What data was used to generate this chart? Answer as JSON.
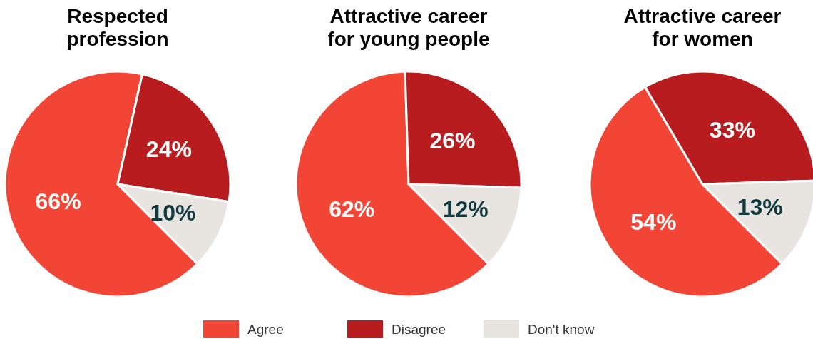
{
  "chart_data": [
    {
      "type": "pie",
      "title": "Respected profession",
      "categories": [
        "Agree",
        "Disagree",
        "Don't know"
      ],
      "values": [
        66,
        24,
        10
      ],
      "value_labels": [
        "66%",
        "24%",
        "10%"
      ],
      "colors": [
        "#f24535",
        "#b81c1f",
        "#e8e4e0"
      ],
      "legend": "bottom"
    },
    {
      "type": "pie",
      "title": "Attractive career for young people",
      "values": [
        62,
        26,
        12
      ],
      "value_labels": [
        "62%",
        "26%",
        "12%"
      ],
      "colors": [
        "#f24535",
        "#b81c1f",
        "#e8e4e0"
      ]
    },
    {
      "type": "pie",
      "title": "Attractive career for women",
      "values": [
        54,
        33,
        13
      ],
      "value_labels": [
        "54%",
        "33%",
        "13%"
      ],
      "colors": [
        "#f24535",
        "#b81c1f",
        "#e8e4e0"
      ]
    }
  ]
}
